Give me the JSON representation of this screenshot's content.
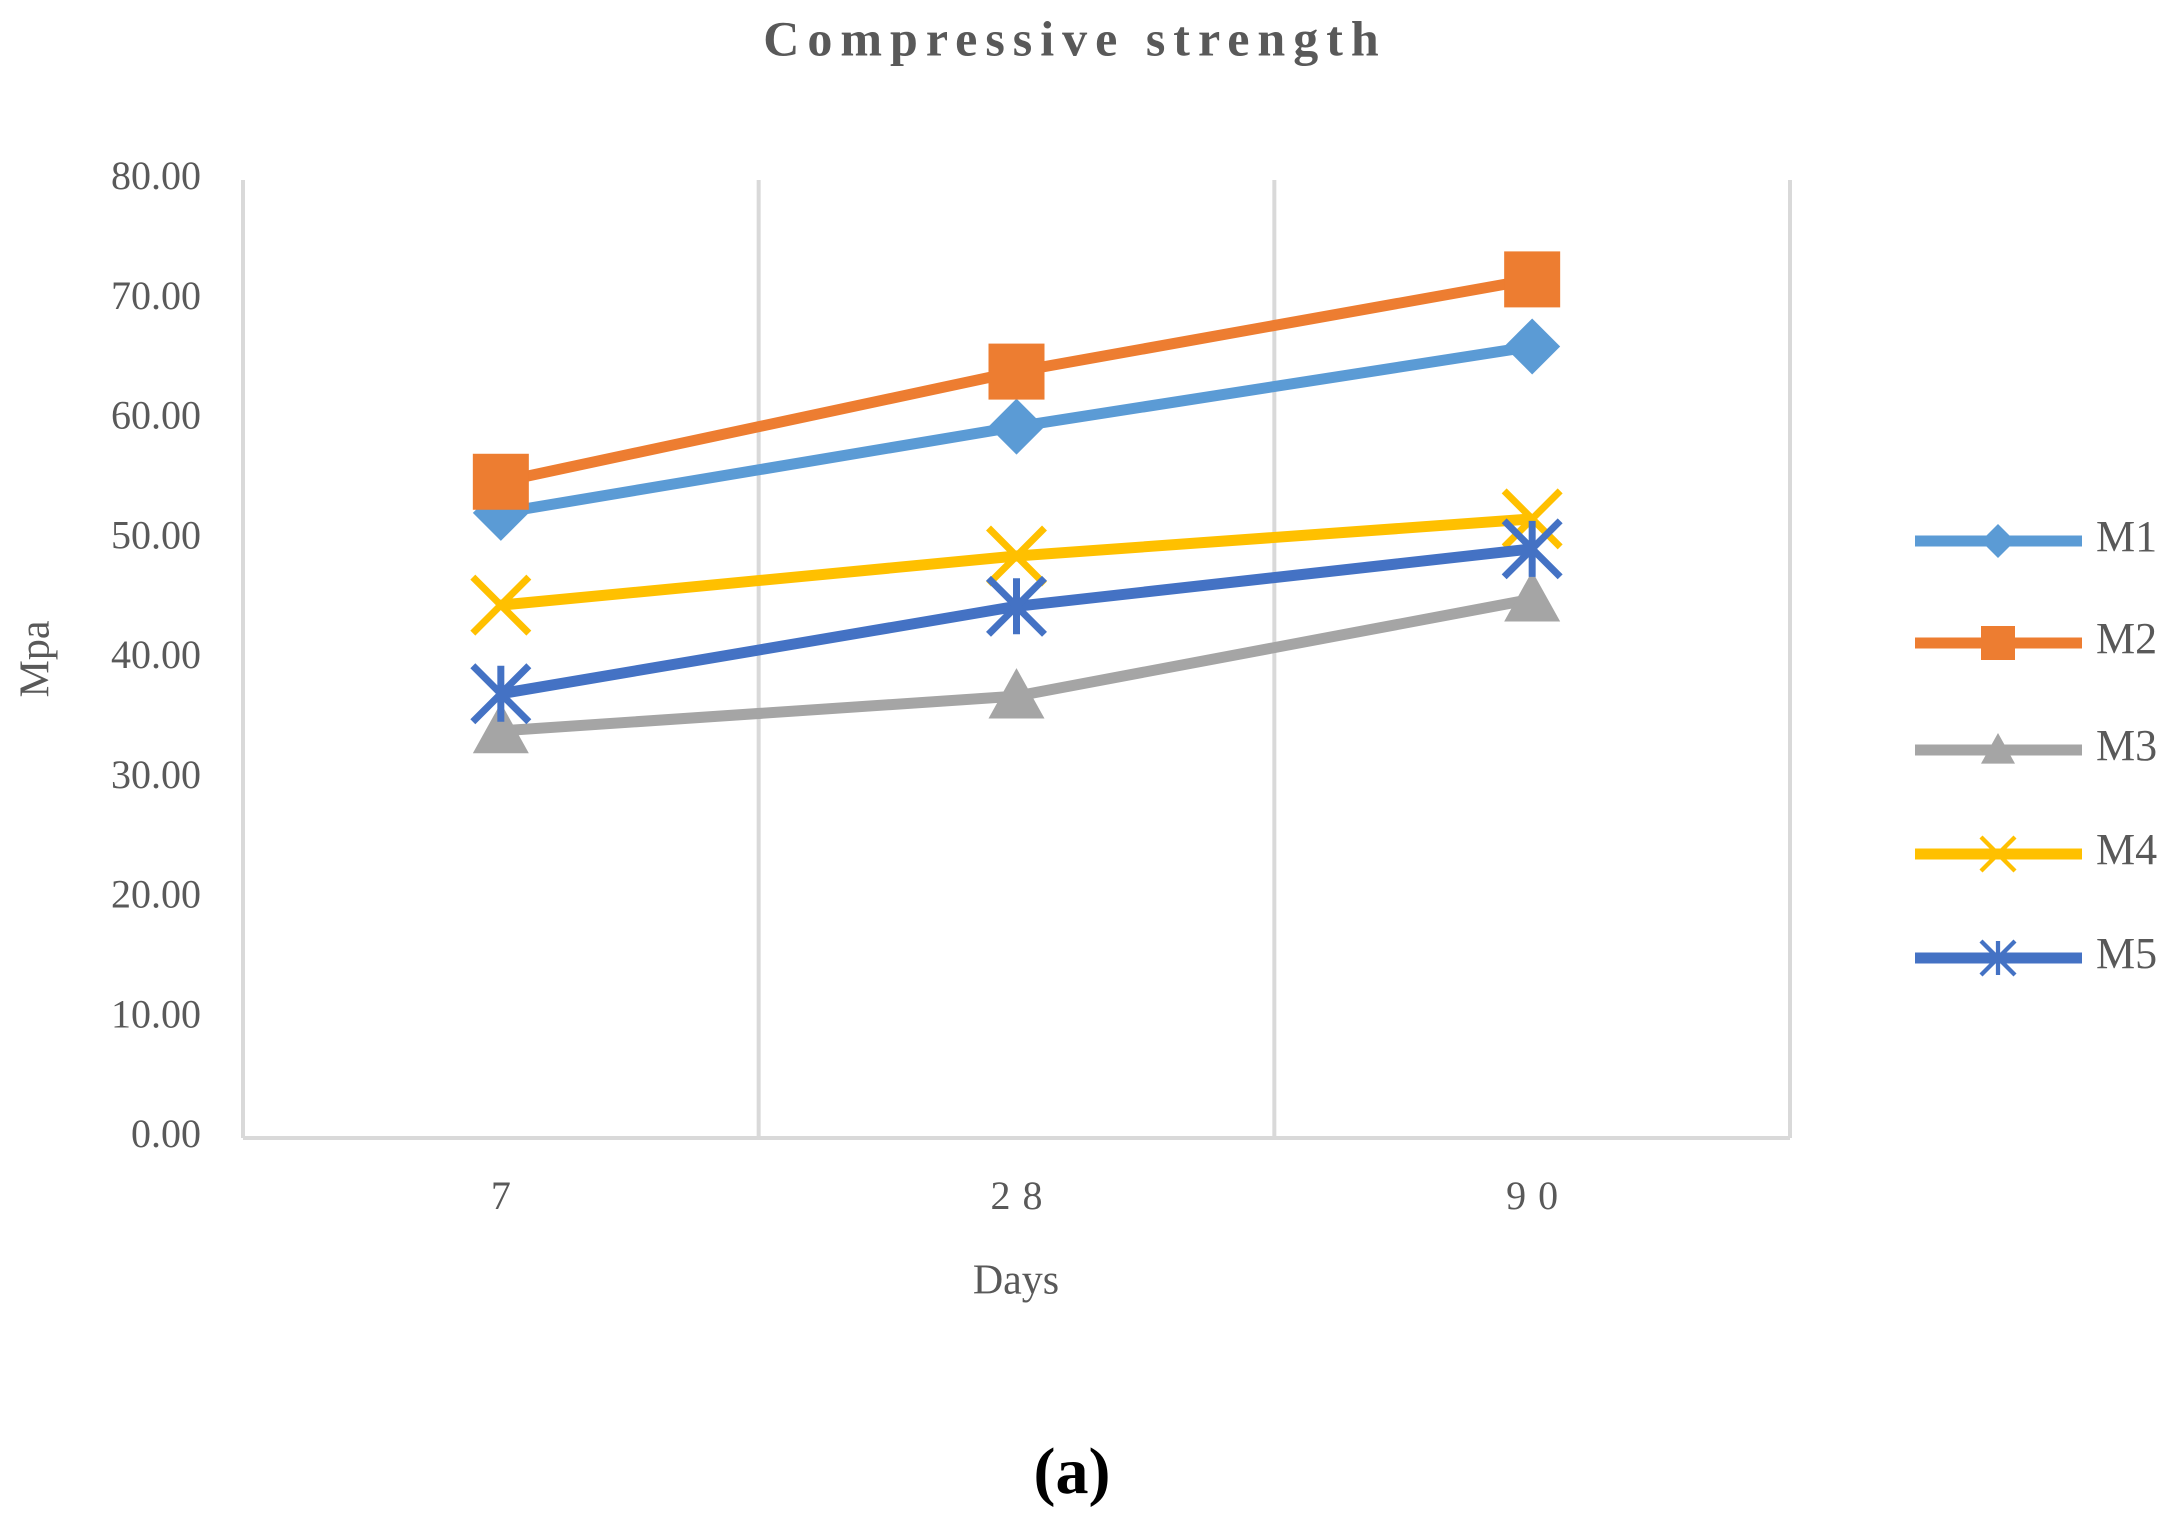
{
  "chart_data": {
    "type": "line",
    "title": "Compressive strength",
    "x_label": "Days",
    "y_label": "Mpa",
    "categories": [
      "7",
      "28",
      "90"
    ],
    "series": [
      {
        "name": "M1",
        "color": "#5b9bd5",
        "marker": "diamond",
        "values": [
          52.2,
          59.4,
          66.1
        ]
      },
      {
        "name": "M2",
        "color": "#ed7d31",
        "marker": "square",
        "values": [
          54.8,
          64.0,
          71.7
        ]
      },
      {
        "name": "M3",
        "color": "#a5a5a5",
        "marker": "triangle",
        "values": [
          34.0,
          36.9,
          45.0
        ]
      },
      {
        "name": "M4",
        "color": "#ffc000",
        "marker": "x",
        "values": [
          44.5,
          48.6,
          51.7
        ]
      },
      {
        "name": "M5",
        "color": "#4472c4",
        "marker": "star",
        "values": [
          37.1,
          44.4,
          49.2
        ]
      }
    ],
    "ylim": [
      0,
      80
    ],
    "yticks": [
      {
        "value": 0,
        "label": "0.00"
      },
      {
        "value": 10,
        "label": "10.00"
      },
      {
        "value": 20,
        "label": "20.00"
      },
      {
        "value": 30,
        "label": "30.00"
      },
      {
        "value": 40,
        "label": "40.00"
      },
      {
        "value": 50,
        "label": "50.00"
      },
      {
        "value": 60,
        "label": "60.00"
      },
      {
        "value": 70,
        "label": "70.00"
      },
      {
        "value": 80,
        "label": "80.00"
      }
    ],
    "grid": true,
    "legend": "right"
  },
  "caption": "(a)"
}
